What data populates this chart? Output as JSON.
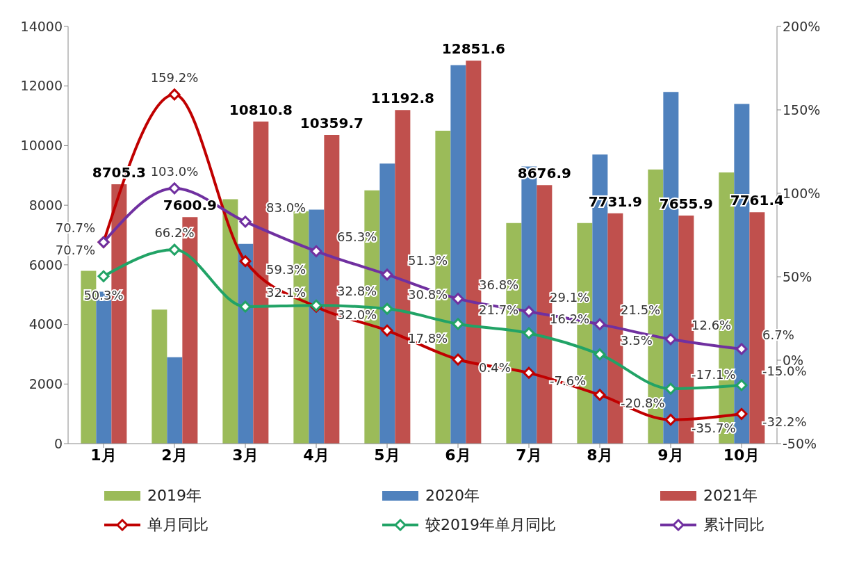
{
  "chart_data": {
    "type": "bar",
    "categories": [
      "1月",
      "2月",
      "3月",
      "4月",
      "5月",
      "6月",
      "7月",
      "8月",
      "9月",
      "10月"
    ],
    "series": [
      {
        "name": "2019年",
        "color": "#9bbb59",
        "values": [
          5800,
          4500,
          8200,
          7800,
          8500,
          10500,
          7400,
          7400,
          9200,
          9100
        ]
      },
      {
        "name": "2020年",
        "color": "#4f81bd",
        "values": [
          5100,
          2900,
          6700,
          7850,
          9400,
          12700,
          9300,
          9700,
          11800,
          11400
        ]
      },
      {
        "name": "2021年",
        "color": "#c0504d",
        "values": [
          8705.3,
          7600.9,
          10810.8,
          10359.7,
          11192.8,
          12851.6,
          8676.9,
          7731.9,
          7655.9,
          7761.4
        ],
        "value_labels": [
          "8705.3",
          "7600.9",
          "10810.8",
          "10359.7",
          "11192.8",
          "12851.6",
          "8676.9",
          "7731.9",
          "7655.9",
          "7761.4"
        ]
      },
      {
        "name": "单月同比",
        "type": "line",
        "axis": "y2",
        "color": "#c00000",
        "values": [
          70.7,
          159.2,
          59.3,
          32.0,
          17.8,
          0.4,
          -7.6,
          -20.8,
          -35.7,
          -32.2
        ],
        "value_labels": [
          "70.7%",
          "159.2%",
          "59.3%",
          "32.0%",
          "17.8%",
          "0.4%",
          "-7.6%",
          "-20.8%",
          "-35.7%",
          "-32.2%"
        ]
      },
      {
        "name": "较2019年单月同比",
        "type": "line",
        "axis": "y2",
        "color": "#21a366",
        "values": [
          50.3,
          66.2,
          32.1,
          32.8,
          30.8,
          21.7,
          16.2,
          3.5,
          -17.1,
          -15.0
        ],
        "value_labels": [
          "50.3%",
          "66.2%",
          "32.1%",
          "32.8%",
          "30.8%",
          "21.7%",
          "16.2%",
          "3.5%",
          "-17.1%",
          "-15.0%"
        ]
      },
      {
        "name": "累计同比",
        "type": "line",
        "axis": "y2",
        "color": "#7030a0",
        "values": [
          70.7,
          103.0,
          83.0,
          65.3,
          51.3,
          36.8,
          29.1,
          21.5,
          12.6,
          6.7
        ],
        "value_labels": [
          "70.7%",
          "103.0%",
          "83.0%",
          "65.3%",
          "51.3%",
          "36.8%",
          "29.1%",
          "21.5%",
          "12.6%",
          "6.7%"
        ]
      }
    ],
    "ylim": [
      0,
      14000
    ],
    "yticks": [
      0,
      2000,
      4000,
      6000,
      8000,
      10000,
      12000,
      14000
    ],
    "y2lim": [
      -50,
      200
    ],
    "y2ticks": [
      {
        "value": -50,
        "label": "-50%"
      },
      {
        "value": 0,
        "label": "0%"
      },
      {
        "value": 50,
        "label": "50%"
      },
      {
        "value": 100,
        "label": "100%"
      },
      {
        "value": 150,
        "label": "150%"
      },
      {
        "value": 200,
        "label": "200%"
      }
    ],
    "marker": "diamond",
    "legend": "bottom",
    "grid": false
  }
}
